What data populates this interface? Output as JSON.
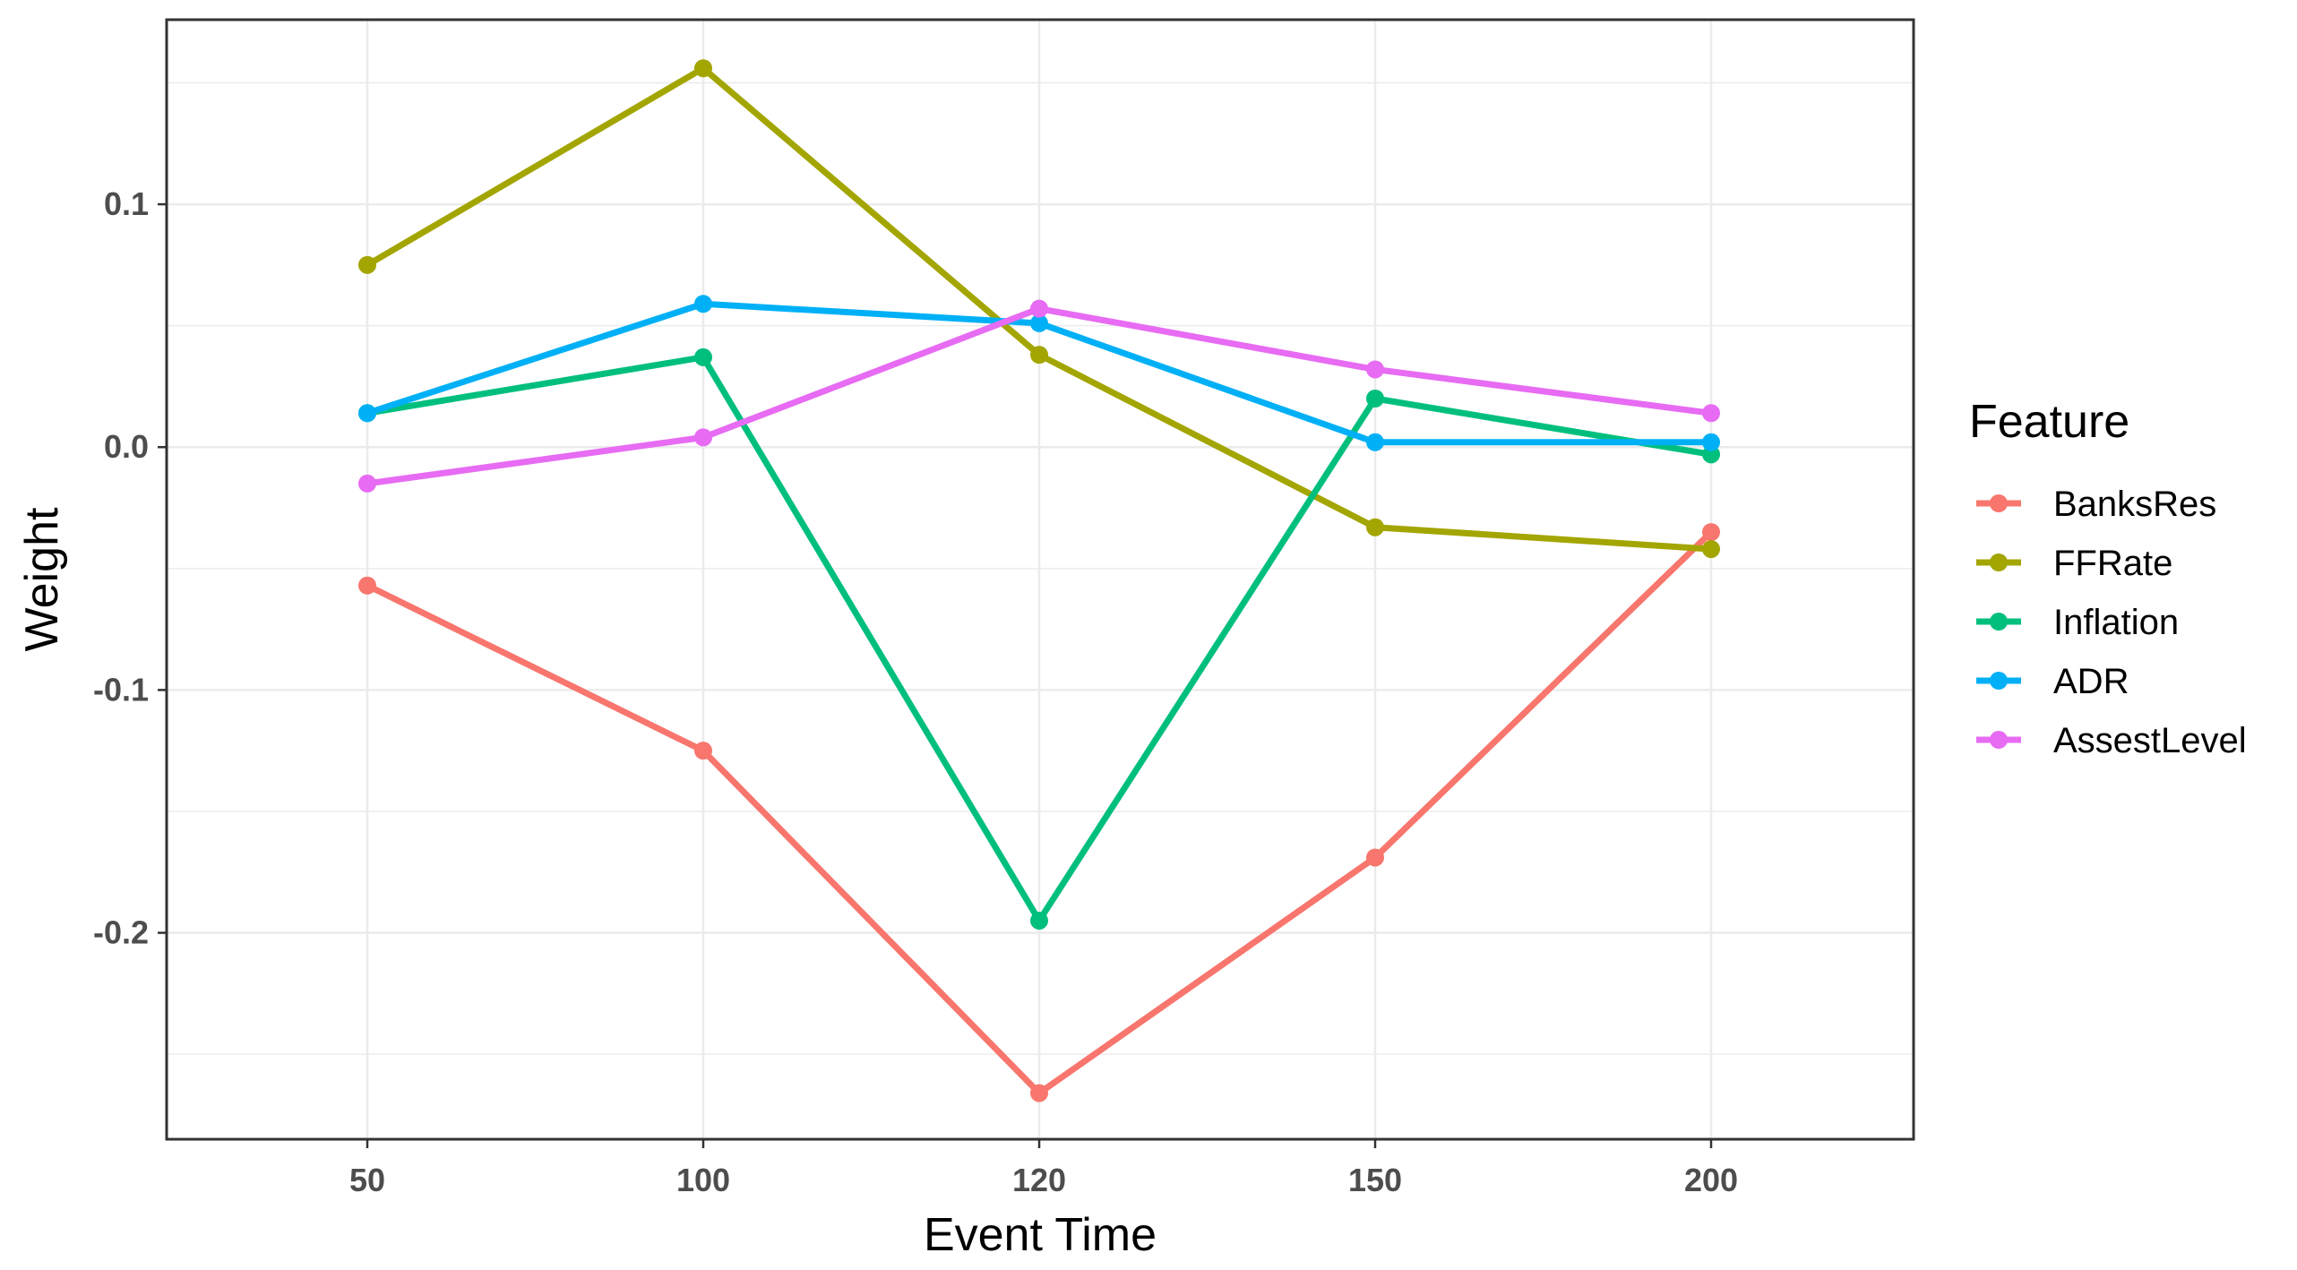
{
  "chart_data": {
    "type": "line",
    "xlabel": "Event Time",
    "ylabel": "Weight",
    "categories": [
      "50",
      "100",
      "120",
      "150",
      "200"
    ],
    "ylim": [
      -0.285,
      0.176
    ],
    "yticks": [
      0.1,
      0.0,
      -0.1,
      -0.2
    ],
    "ytick_labels": [
      "0.1",
      "0.0",
      "-0.1",
      "-0.2"
    ],
    "grid": true,
    "legend": {
      "title": "Feature",
      "position": "right"
    },
    "series": [
      {
        "name": "BanksRes",
        "color": "#F8766D",
        "values": [
          -0.057,
          -0.125,
          -0.266,
          -0.169,
          -0.035
        ]
      },
      {
        "name": "FFRate",
        "color": "#A3A500",
        "values": [
          0.075,
          0.156,
          0.038,
          -0.033,
          -0.042
        ]
      },
      {
        "name": "Inflation",
        "color": "#00BF7D",
        "values": [
          0.014,
          0.037,
          -0.195,
          0.02,
          -0.003
        ]
      },
      {
        "name": "ADR",
        "color": "#00B0F6",
        "values": [
          0.014,
          0.059,
          0.051,
          0.002,
          0.002
        ]
      },
      {
        "name": "AssestLevel",
        "color": "#E76BF3",
        "values": [
          -0.015,
          0.004,
          0.057,
          0.032,
          0.014
        ]
      }
    ]
  }
}
